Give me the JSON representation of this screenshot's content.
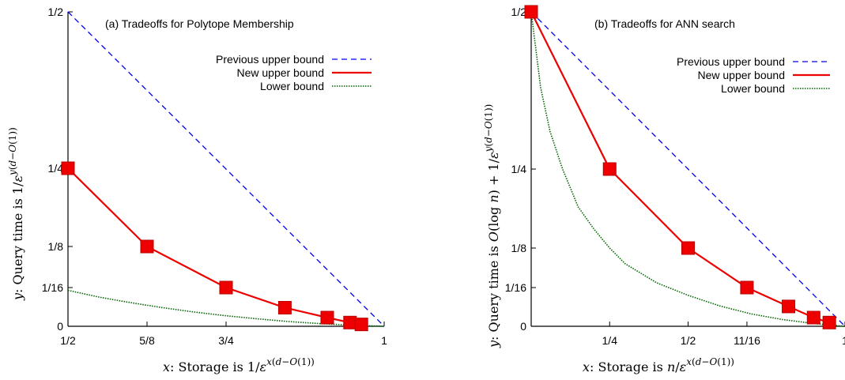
{
  "chart_data": [
    {
      "type": "line",
      "title": "(a) Tradeoffs for Polytope Membership",
      "xlabel": "x: Storage is 1/ε^{x(d−O(1))}",
      "ylabel": "y: Query time is 1/ε^{y(d−O(1))}",
      "xlim": [
        0.5,
        1.0
      ],
      "ylim": [
        0,
        0.5
      ],
      "y_scale": "nonlinear (tick spacing not proportional)",
      "x_ticks": [
        {
          "value": 0.5,
          "label": "1/2"
        },
        {
          "value": 0.625,
          "label": "5/8"
        },
        {
          "value": 0.75,
          "label": "3/4"
        },
        {
          "value": 1.0,
          "label": "1"
        }
      ],
      "y_ticks": [
        {
          "value": 0,
          "label": "0"
        },
        {
          "value": 0.0625,
          "label": "1/16"
        },
        {
          "value": 0.125,
          "label": "1/8"
        },
        {
          "value": 0.25,
          "label": "1/4"
        },
        {
          "value": 0.5,
          "label": "1/2"
        }
      ],
      "legend_position": "top-right",
      "series": [
        {
          "name": "Previous upper bound",
          "style": "dashed",
          "color": "#0000ee",
          "points": [
            [
              0.5,
              0.5
            ],
            [
              1.0,
              0
            ]
          ]
        },
        {
          "name": "New upper bound",
          "style": "solid",
          "color": "#ee0000",
          "markers": "square",
          "points": [
            [
              0.5,
              0.25
            ],
            [
              0.625,
              0.125
            ],
            [
              0.75,
              0.0625
            ],
            [
              0.843,
              0.03
            ],
            [
              0.91,
              0.014
            ],
            [
              0.946,
              0.006
            ],
            [
              0.964,
              0.003
            ]
          ]
        },
        {
          "name": "Lower bound",
          "style": "dotted",
          "color": "#006400",
          "curve": "y = (1-x)/(2+4x)... approximate",
          "points": [
            [
              0.5,
              0.058
            ],
            [
              0.55,
              0.047
            ],
            [
              0.6,
              0.038
            ],
            [
              0.65,
              0.03
            ],
            [
              0.7,
              0.023
            ],
            [
              0.75,
              0.017
            ],
            [
              0.8,
              0.012
            ],
            [
              0.85,
              0.0075
            ],
            [
              0.9,
              0.0042
            ],
            [
              0.95,
              0.0017
            ],
            [
              1.0,
              0
            ]
          ]
        }
      ]
    },
    {
      "type": "line",
      "title": "(b) Tradeoffs for ANN search",
      "xlabel": "x: Storage is n/ε^{x(d−O(1))}",
      "ylabel": "y: Query time is O(log n) + 1/ε^{y(d−O(1))}",
      "xlim": [
        0,
        1.0
      ],
      "ylim": [
        0,
        0.5
      ],
      "y_scale": "nonlinear (tick spacing not proportional)",
      "x_ticks": [
        {
          "value": 0.25,
          "label": "1/4"
        },
        {
          "value": 0.5,
          "label": "1/2"
        },
        {
          "value": 0.6875,
          "label": "11/16"
        },
        {
          "value": 1.0,
          "label": "1"
        }
      ],
      "y_ticks": [
        {
          "value": 0,
          "label": "0"
        },
        {
          "value": 0.0625,
          "label": "1/16"
        },
        {
          "value": 0.125,
          "label": "1/8"
        },
        {
          "value": 0.25,
          "label": "1/4"
        },
        {
          "value": 0.5,
          "label": "1/2"
        }
      ],
      "legend_position": "top-right",
      "series": [
        {
          "name": "Previous upper bound",
          "style": "dashed",
          "color": "#0000ee",
          "points": [
            [
              0,
              0.5
            ],
            [
              1.0,
              0
            ]
          ]
        },
        {
          "name": "New upper bound",
          "style": "solid",
          "color": "#ee0000",
          "markers": "square",
          "points": [
            [
              0,
              0.5
            ],
            [
              0.25,
              0.25
            ],
            [
              0.5,
              0.125
            ],
            [
              0.6875,
              0.0625
            ],
            [
              0.82,
              0.032
            ],
            [
              0.9,
              0.014
            ],
            [
              0.95,
              0.006
            ]
          ]
        },
        {
          "name": "Lower bound",
          "style": "dotted",
          "color": "#006400",
          "points": [
            [
              0,
              0.5
            ],
            [
              0.03,
              0.38
            ],
            [
              0.06,
              0.31
            ],
            [
              0.1,
              0.25
            ],
            [
              0.15,
              0.19
            ],
            [
              0.2,
              0.155
            ],
            [
              0.25,
              0.125
            ],
            [
              0.3,
              0.1
            ],
            [
              0.35,
              0.085
            ],
            [
              0.4,
              0.07
            ],
            [
              0.5,
              0.05
            ],
            [
              0.6,
              0.033
            ],
            [
              0.7,
              0.02
            ],
            [
              0.8,
              0.011
            ],
            [
              0.9,
              0.0045
            ],
            [
              1.0,
              0
            ]
          ]
        }
      ]
    }
  ]
}
